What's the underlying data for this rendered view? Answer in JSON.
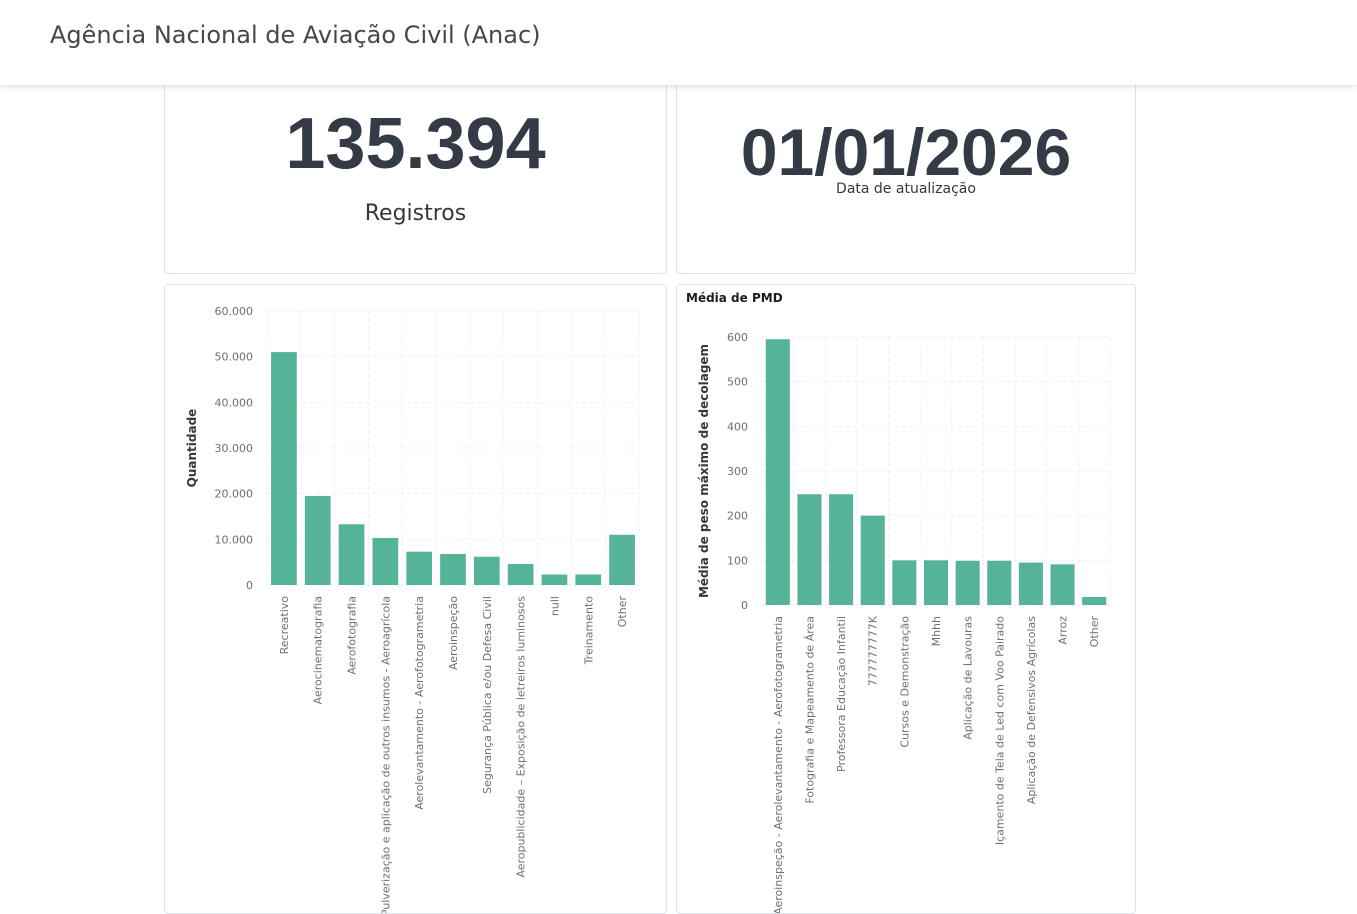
{
  "header": {
    "title": "Agência Nacional de Aviação Civil (Anac)"
  },
  "metrics": {
    "records": {
      "value": "135.394",
      "label": "Registros"
    },
    "update": {
      "value": "01/01/2026",
      "label": "Data de atualização"
    }
  },
  "chart_data": [
    {
      "type": "bar",
      "title": "",
      "xlabel": "",
      "ylabel": "Quantidade",
      "ylim": [
        0,
        60000
      ],
      "yticks": [
        0,
        10000,
        20000,
        30000,
        40000,
        50000,
        60000
      ],
      "ytick_labels": [
        "0",
        "10.000",
        "20.000",
        "30.000",
        "40.000",
        "50.000",
        "60.000"
      ],
      "categories": [
        "Recreativo",
        "Aerocinematografia",
        "Aerofotografia",
        "Pulverização e aplicação de outros insumos - Aeroagrícola",
        "Aerolevantamento - Aerofotogrametria",
        "Aeroinspeção",
        "Segurança Pública e/ou Defesa Civil",
        "Aeropublicidade – Exposição de letreiros luminosos",
        "null",
        "Treinamento",
        "Other"
      ],
      "values": [
        51000,
        19500,
        13300,
        10300,
        7300,
        6800,
        6200,
        4600,
        2300,
        2300,
        11000
      ],
      "color": "#54b399",
      "grid": true
    },
    {
      "type": "bar",
      "title": "Média de PMD",
      "xlabel": "",
      "ylabel": "Média de peso máximo de decolagem",
      "ylim": [
        0,
        600
      ],
      "yticks": [
        0,
        100,
        200,
        300,
        400,
        500,
        600
      ],
      "ytick_labels": [
        "0",
        "100",
        "200",
        "300",
        "400",
        "500",
        "600"
      ],
      "categories": [
        "Aeroinspeção - Aerolevantamento - Aerofotogrametria",
        "Fotografia e Mapeamento de Área",
        "Professora Educação Infantil",
        "777777777K",
        "Cursos e Demonstração",
        "Mhhh",
        "Aplicação de Lavouras",
        "Içamento de Tela de Led com Voo Pairado",
        "Aplicação de Defensivos Agrícolas",
        "Arroz",
        "Other"
      ],
      "values": [
        595,
        248,
        248,
        200,
        100,
        100,
        99,
        99,
        95,
        91,
        18
      ],
      "color": "#54b399",
      "grid": true
    }
  ]
}
